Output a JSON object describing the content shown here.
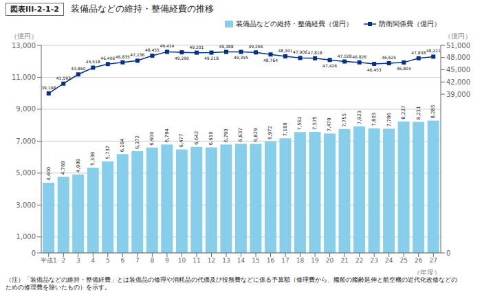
{
  "chart_data": {
    "type": "bar",
    "title": "装備品などの維持・整備経費の推移",
    "annotations": [
      "図表III-2-1-2",
      "（注）「装備品などの維持・整備経費」とは装備品の修理や消耗品の代価及び役務費などに係る予算額（修理費から、艦船の艦齢延伸と航空機の近代化改修などの\nための修理費を除いたもの）を示す。"
    ],
    "xlabel": "（年度）",
    "ylabel": "（億円）",
    "y2label": "（億円）",
    "categories": [
      "平成1",
      "2",
      "3",
      "4",
      "5",
      "6",
      "7",
      "8",
      "9",
      "10",
      "11",
      "12",
      "13",
      "14",
      "15",
      "16",
      "17",
      "18",
      "19",
      "20",
      "21",
      "22",
      "23",
      "24",
      "25",
      "26",
      "27"
    ],
    "series": [
      {
        "name": "装備品などの維持・整備経費（億円）",
        "type": "bar",
        "color": "#87CEEB",
        "values": [
          4400,
          4769,
          4908,
          5339,
          5737,
          6184,
          6372,
          6600,
          6794,
          6477,
          6642,
          6610,
          6790,
          6837,
          6829,
          6972,
          7180,
          7562,
          7575,
          7479,
          7755,
          7923,
          7803,
          7786,
          8237,
          8211,
          8285
        ],
        "value_labels": [
          "4,400",
          "4,769",
          "4,908",
          "5,339",
          "5,737",
          "6,184",
          "6,372",
          "6,600",
          "6,794",
          "6,477",
          "6,642",
          "6,610",
          "6,790",
          "6,837",
          "6,829",
          "6,972",
          "7,180",
          "7,562",
          "7,575",
          "7,479",
          "7,755",
          "7,923",
          "7,803",
          "7,786",
          "8,237",
          "8,211",
          "8,285"
        ]
      },
      {
        "name": "防衛関係費（億円）",
        "type": "line",
        "color": "#003087",
        "marker": "square",
        "axis": "y2",
        "values": [
          39198,
          41593,
          43860,
          45518,
          46406,
          46835,
          47236,
          48455,
          49414,
          49290,
          49201,
          49218,
          49388,
          49395,
          49265,
          48764,
          48301,
          47906,
          47818,
          47426,
          47028,
          46826,
          46453,
          46625,
          46804,
          47838,
          48221
        ],
        "value_labels": [
          "39,198",
          "41,593",
          "43,860",
          "45,518",
          "46,406",
          "46,835",
          "47,236",
          "48,455",
          "49,414",
          "49,290",
          "49,201",
          "49,218",
          "49,388",
          "49,395",
          "49,265",
          "48,764",
          "48,301",
          "47,906",
          "47,818",
          "47,426",
          "47,028",
          "46,826",
          "46,453",
          "46,625",
          "46,804",
          "47,838",
          "48,221"
        ]
      }
    ],
    "ylim": [
      0,
      13000
    ],
    "yticks": [
      0,
      {
        "value": 1000,
        "label": "1,000"
      },
      {
        "value": 3000,
        "label": "3,000"
      },
      {
        "value": 5000,
        "label": "5,000"
      },
      {
        "value": 7000,
        "label": "7,000"
      },
      {
        "value": 9000,
        "label": "9,000"
      },
      {
        "value": 11000,
        "label": "11,000"
      },
      {
        "value": 13000,
        "label": "13,000"
      }
    ],
    "y2lim": [
      0,
      51000
    ],
    "y2ticks": [
      0,
      {
        "value": 39000,
        "label": "39,000"
      },
      {
        "value": 42000,
        "label": "42,000"
      },
      {
        "value": 45000,
        "label": "45,000"
      },
      {
        "value": 48000,
        "label": "48,000"
      },
      {
        "value": 51000,
        "label": "51,000"
      }
    ],
    "grid": true,
    "legend": "top",
    "data_labels": true
  }
}
